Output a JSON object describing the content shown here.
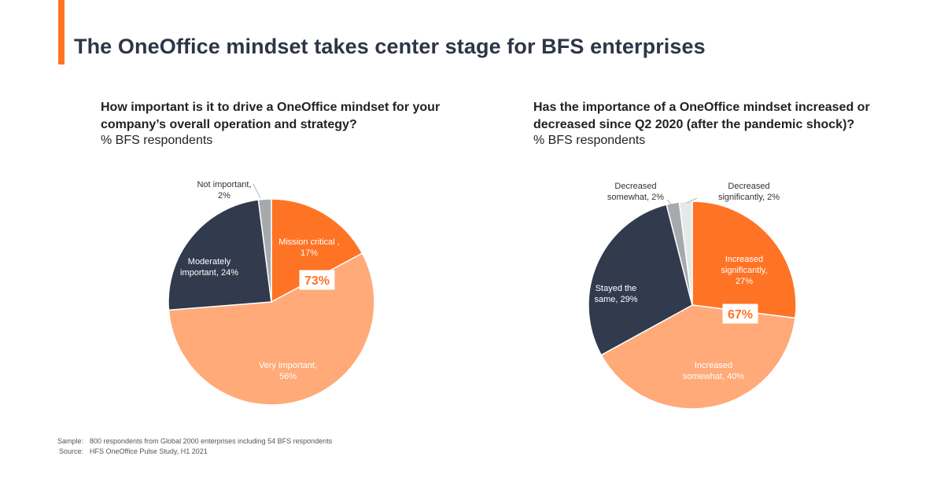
{
  "title": "The OneOffice mindset takes center stage for BFS enterprises",
  "colors": {
    "accent": "#ff7325",
    "dark": "#323a4d",
    "light_orange": "#ffaa78",
    "gray": "#a6aaad",
    "light_gray": "#e6e8ea"
  },
  "chart_data": [
    {
      "type": "pie",
      "question_lines": [
        "How important is it to drive a OneOffice mindset for your",
        "company’s overall operation and strategy?"
      ],
      "subtitle": "% BFS respondents",
      "highlight": "73%",
      "slices": [
        {
          "label_lines": [
            "Mission critical ,",
            "17%"
          ],
          "value": 17,
          "color": "#ff7325"
        },
        {
          "label_lines": [
            "Very important,",
            "56%"
          ],
          "value": 56,
          "color": "#ffaa78"
        },
        {
          "label_lines": [
            "Moderately",
            "important, 24%"
          ],
          "value": 24,
          "color": "#323a4d"
        },
        {
          "label_lines": [
            "Not important,",
            "2%"
          ],
          "value": 2,
          "color": "#a6aaad"
        }
      ]
    },
    {
      "type": "pie",
      "question_lines": [
        "Has the importance of a OneOffice mindset increased or",
        "decreased since Q2 2020 (after the pandemic shock)?"
      ],
      "subtitle": "% BFS respondents",
      "highlight": "67%",
      "slices": [
        {
          "label_lines": [
            "Increased",
            "significantly,",
            "27%"
          ],
          "value": 27,
          "color": "#ff7325"
        },
        {
          "label_lines": [
            "Increased",
            "somewhat, 40%"
          ],
          "value": 40,
          "color": "#ffaa78"
        },
        {
          "label_lines": [
            "Stayed the",
            "same, 29%"
          ],
          "value": 29,
          "color": "#323a4d"
        },
        {
          "label_lines": [
            "Decreased",
            "somewhat, 2%"
          ],
          "value": 2,
          "color": "#a6aaad"
        },
        {
          "label_lines": [
            "Decreased",
            "significantly, 2%"
          ],
          "value": 2,
          "color": "#e6e8ea"
        }
      ]
    }
  ],
  "footnotes": {
    "sample_label": "Sample:",
    "sample_text": "800 respondents from Global 2000 enterprises including 54 BFS respondents",
    "source_label": "Source:",
    "source_text": "HFS OneOffice Pulse Study, H1 2021"
  }
}
